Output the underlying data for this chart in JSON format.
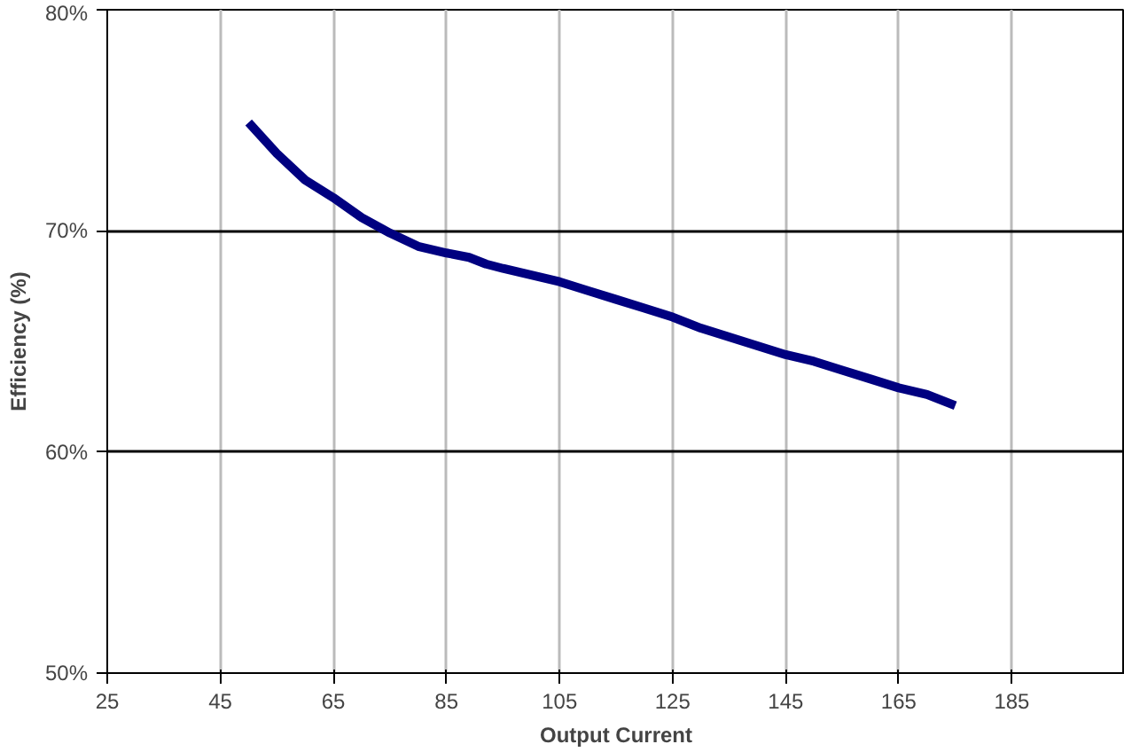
{
  "chart_data": {
    "type": "line",
    "xlabel": "Output Current",
    "ylabel": "Efficiency (%)",
    "x": [
      50,
      55,
      60,
      65,
      70,
      75,
      80,
      85,
      89,
      92,
      95,
      100,
      105,
      110,
      115,
      120,
      125,
      130,
      135,
      140,
      145,
      150,
      155,
      160,
      165,
      170,
      175
    ],
    "series": [
      {
        "color": "#000080",
        "values": [
          74.9,
          73.5,
          72.3,
          71.5,
          70.6,
          69.9,
          69.3,
          69.0,
          68.8,
          68.5,
          68.3,
          68.0,
          67.7,
          67.3,
          66.9,
          66.5,
          66.1,
          65.6,
          65.2,
          64.8,
          64.4,
          64.1,
          63.7,
          63.3,
          62.9,
          62.6,
          62.1
        ]
      }
    ],
    "xlim": [
      25,
      205
    ],
    "xticks": [
      25,
      45,
      65,
      85,
      105,
      125,
      145,
      165,
      185
    ],
    "ylim": [
      50,
      80
    ],
    "yticks": [
      {
        "value": 50,
        "label": "50%"
      },
      {
        "value": 60,
        "label": "60%"
      },
      {
        "value": 70,
        "label": "70%"
      },
      {
        "value": 80,
        "label": "80%"
      }
    ],
    "grid": true,
    "marker": "none",
    "line_style": "solid"
  }
}
